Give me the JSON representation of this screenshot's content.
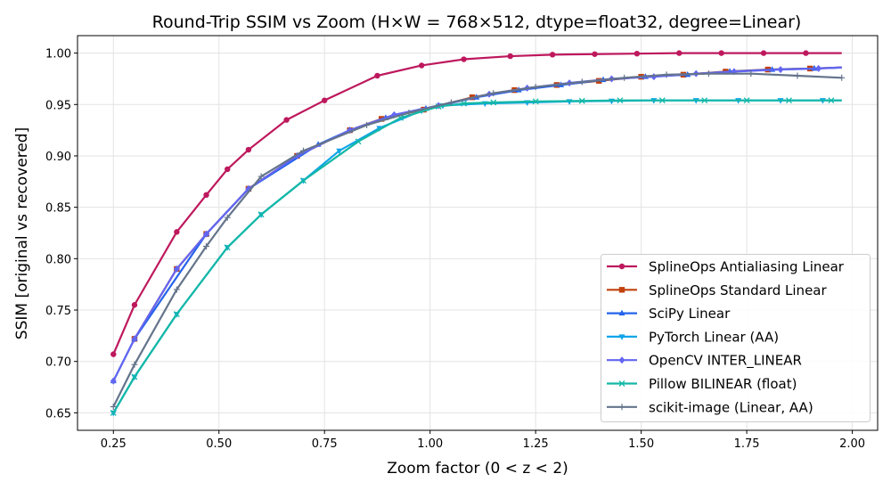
{
  "chart_data": {
    "type": "line",
    "title": "Round-Trip SSIM vs Zoom  (H×W = 768×512, dtype=float32, degree=Linear)",
    "xlabel": "Zoom factor (0 < z < 2)",
    "ylabel": "SSIM  [original vs recovered]",
    "xlim": [
      0.165,
      2.06
    ],
    "ylim": [
      0.633,
      1.017
    ],
    "xticks": [
      "0.25",
      "0.50",
      "0.75",
      "1.00",
      "1.25",
      "1.50",
      "1.75",
      "2.00"
    ],
    "yticks": [
      "0.65",
      "0.70",
      "0.75",
      "0.80",
      "0.85",
      "0.90",
      "0.95",
      "1.00"
    ],
    "grid": true,
    "legend_position": "lower-right",
    "series": [
      {
        "name": "SplineOps Antialiasing Linear",
        "color": "#be185d",
        "marker": "circle",
        "x": [
          0.25,
          0.3,
          0.4,
          0.47,
          0.52,
          0.57,
          0.66,
          0.75,
          0.875,
          0.98,
          1.08,
          1.19,
          1.29,
          1.39,
          1.49,
          1.59,
          1.69,
          1.79,
          1.89,
          1.975
        ],
        "y": [
          0.707,
          0.755,
          0.826,
          0.862,
          0.887,
          0.906,
          0.935,
          0.954,
          0.978,
          0.988,
          0.994,
          0.997,
          0.9985,
          0.999,
          0.9995,
          1.0,
          1.0,
          1.0,
          1.0,
          1.0
        ]
      },
      {
        "name": "SplineOps Standard Linear",
        "color": "#c2410c",
        "marker": "square",
        "x": [
          0.3,
          0.4,
          0.47,
          0.57,
          0.685,
          0.81,
          0.885,
          0.985,
          1.1,
          1.2,
          1.3,
          1.4,
          1.5,
          1.6,
          1.7,
          1.8,
          1.9,
          1.975
        ],
        "y": [
          0.722,
          0.79,
          0.824,
          0.868,
          0.9,
          0.925,
          0.936,
          0.945,
          0.957,
          0.964,
          0.969,
          0.973,
          0.977,
          0.979,
          0.982,
          0.984,
          0.985,
          0.986
        ]
      },
      {
        "name": "SciPy Linear",
        "color": "#2563eb",
        "marker": "triangle-up",
        "x": [
          0.25,
          0.3,
          0.47,
          0.57,
          0.735,
          0.81,
          0.895,
          0.99,
          1.11,
          1.21,
          1.31,
          1.41,
          1.51,
          1.61,
          1.71,
          1.81,
          1.91,
          1.975
        ],
        "y": [
          0.681,
          0.722,
          0.824,
          0.868,
          0.911,
          0.925,
          0.937,
          0.946,
          0.957,
          0.964,
          0.969,
          0.974,
          0.977,
          0.979,
          0.982,
          0.984,
          0.985,
          0.986
        ]
      },
      {
        "name": "PyTorch Linear (AA)",
        "color": "#0ea5e9",
        "marker": "triangle-down",
        "x": [
          0.25,
          0.3,
          0.4,
          0.52,
          0.6,
          0.7,
          0.785,
          0.88,
          0.98,
          1.03,
          1.13,
          1.23,
          1.33,
          1.43,
          1.53,
          1.63,
          1.73,
          1.83,
          1.93,
          1.975
        ],
        "y": [
          0.65,
          0.685,
          0.746,
          0.811,
          0.843,
          0.876,
          0.905,
          0.927,
          0.944,
          0.949,
          0.951,
          0.952,
          0.953,
          0.9535,
          0.954,
          0.954,
          0.954,
          0.954,
          0.954,
          0.954
        ]
      },
      {
        "name": "OpenCV INTER_LINEAR",
        "color": "#6366f1",
        "marker": "diamond",
        "x": [
          0.25,
          0.3,
          0.4,
          0.47,
          0.57,
          0.685,
          0.81,
          0.915,
          1.02,
          1.14,
          1.23,
          1.33,
          1.43,
          1.53,
          1.63,
          1.72,
          1.83,
          1.92,
          1.975
        ],
        "y": [
          0.681,
          0.722,
          0.79,
          0.824,
          0.868,
          0.9,
          0.925,
          0.94,
          0.949,
          0.96,
          0.966,
          0.971,
          0.975,
          0.977,
          0.98,
          0.982,
          0.984,
          0.985,
          0.986
        ]
      },
      {
        "name": "Pillow BILINEAR (float)",
        "color": "#14b8a6",
        "marker": "x",
        "x": [
          0.25,
          0.3,
          0.4,
          0.52,
          0.6,
          0.7,
          0.83,
          0.93,
          1.02,
          1.08,
          1.15,
          1.25,
          1.36,
          1.45,
          1.55,
          1.65,
          1.75,
          1.85,
          1.95,
          1.975
        ],
        "y": [
          0.65,
          0.685,
          0.746,
          0.811,
          0.843,
          0.876,
          0.914,
          0.937,
          0.948,
          0.951,
          0.952,
          0.953,
          0.9535,
          0.954,
          0.954,
          0.954,
          0.954,
          0.954,
          0.954,
          0.954
        ]
      },
      {
        "name": "scikit-image (Linear, AA)",
        "color": "#64748b",
        "marker": "plus",
        "x": [
          0.25,
          0.3,
          0.4,
          0.47,
          0.52,
          0.6,
          0.7,
          0.85,
          0.95,
          1.05,
          1.15,
          1.25,
          1.36,
          1.46,
          1.56,
          1.66,
          1.76,
          1.87,
          1.975
        ],
        "y": [
          0.656,
          0.697,
          0.77,
          0.812,
          0.84,
          0.88,
          0.905,
          0.93,
          0.942,
          0.952,
          0.961,
          0.967,
          0.972,
          0.976,
          0.979,
          0.98,
          0.98,
          0.978,
          0.976
        ]
      }
    ]
  }
}
